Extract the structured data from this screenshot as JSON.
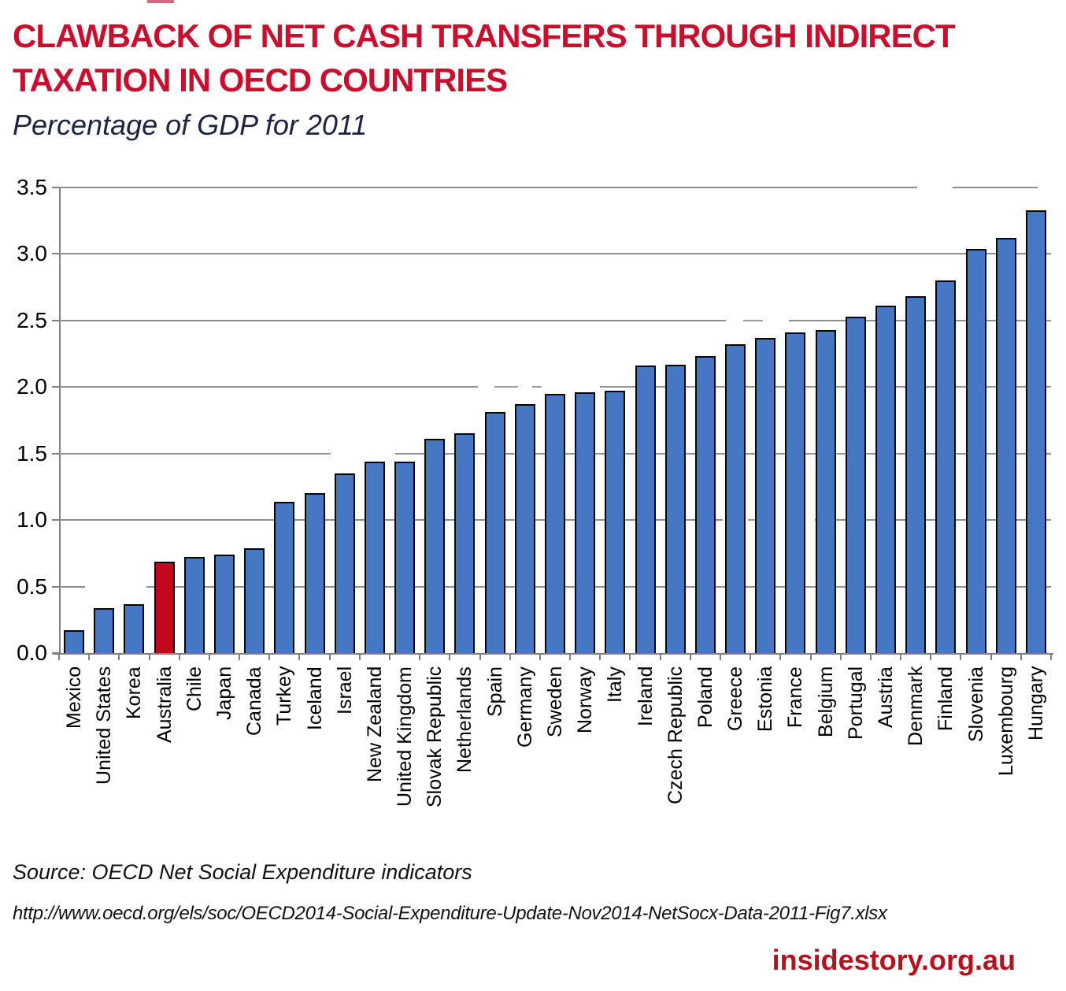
{
  "header": {
    "title_line1": "CLAWBACK OF NET CASH TRANSFERS THROUGH INDIRECT",
    "title_line2": "TAXATION IN OECD COUNTRIES",
    "subtitle": "Percentage of GDP for 2011"
  },
  "chart_data": {
    "type": "bar",
    "title": "Clawback of net cash transfers through indirect taxation in OECD countries",
    "subtitle": "Percentage of GDP for 2011",
    "xlabel": "",
    "ylabel": "",
    "ylim": [
      0,
      3.5
    ],
    "ytick_step": 0.5,
    "ytick_labels": [
      "0.0",
      "0.5",
      "1.0",
      "1.5",
      "2.0",
      "2.5",
      "3.0",
      "3.5"
    ],
    "grid": true,
    "categories": [
      "Mexico",
      "United States",
      "Korea",
      "Australia",
      "Chile",
      "Japan",
      "Canada",
      "Turkey",
      "Iceland",
      "Israel",
      "New Zealand",
      "United Kingdom",
      "Slovak Republic",
      "Netherlands",
      "Spain",
      "Germany",
      "Sweden",
      "Norway",
      "Italy",
      "Ireland",
      "Czech Republic",
      "Poland",
      "Greece",
      "Estonia",
      "France",
      "Belgium",
      "Portugal",
      "Austria",
      "Denmark",
      "Finland",
      "Slovenia",
      "Luxembourg",
      "Hungary"
    ],
    "values": [
      0.17,
      0.34,
      0.37,
      0.69,
      0.72,
      0.74,
      0.79,
      1.14,
      1.2,
      1.35,
      1.44,
      1.44,
      1.61,
      1.65,
      1.81,
      1.87,
      1.95,
      1.96,
      1.97,
      2.16,
      2.17,
      2.23,
      2.32,
      2.37,
      2.41,
      2.43,
      2.53,
      2.61,
      2.68,
      2.8,
      3.04,
      3.12,
      3.33
    ],
    "bar_color": "#4677c2",
    "bar_border_color": "#060606",
    "highlight_category": "Australia",
    "highlight_color": "#c3081c",
    "legend": "none"
  },
  "footer": {
    "source": "Source: OECD Net Social Expenditure indicators",
    "url": "http://www.oecd.org/els/soc/OECD2014-Social-Expenditure-Update-Nov2014-NetSocx-Data-2011-Fig7.xlsx",
    "brand": "insidestory.org.au"
  },
  "colors": {
    "title_red": "#c8102e",
    "subtitle_navy": "#1a2340",
    "axis_gray": "#808080",
    "gridline_gray": "#8f8f8f",
    "brand_red": "#b5121e"
  }
}
